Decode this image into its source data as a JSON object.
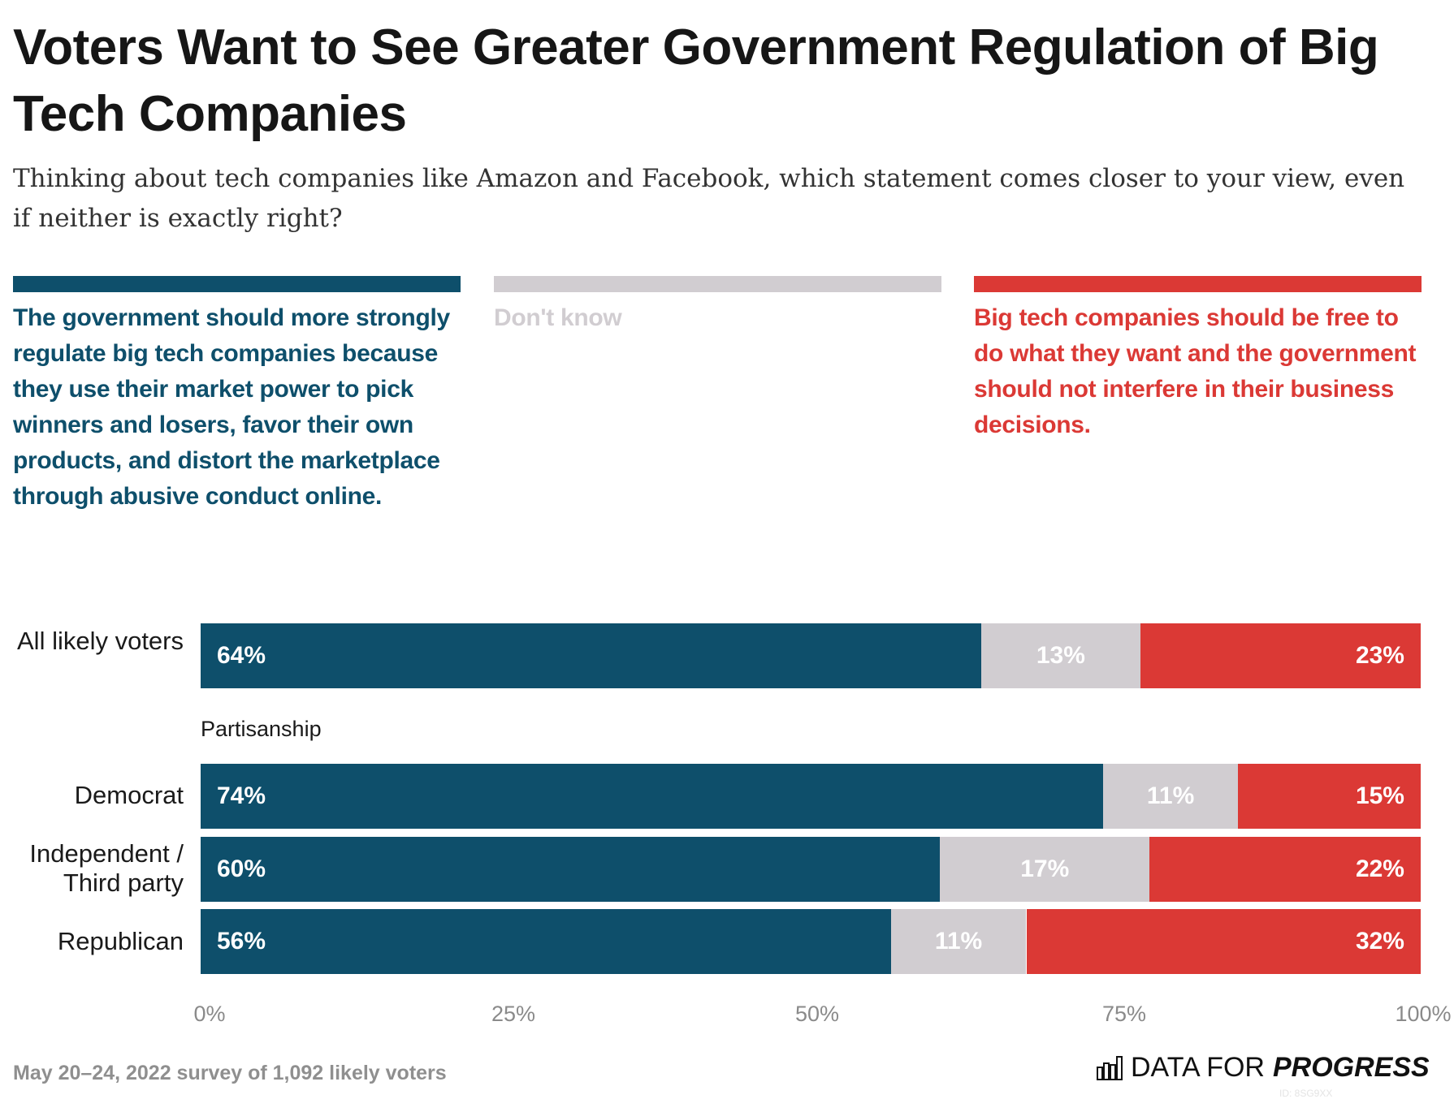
{
  "title": "Voters Want to See Greater Government Regulation of Big Tech Companies",
  "subtitle": "Thinking about tech companies like Amazon and Facebook, which statement comes closer to your view, even if neither is exactly right?",
  "colors": {
    "regulate": "#0e4f6b",
    "dont_know": "#d1cdd1",
    "free": "#db3935"
  },
  "legend": [
    {
      "label": "The government should more strongly regulate big tech companies because they use their market power to pick winners and losers, favor their own products, and distort the marketplace through abusive conduct online.",
      "color": "#0e4f6b"
    },
    {
      "label": "Don't know",
      "color": "#d1cdd1"
    },
    {
      "label": "Big tech companies should be free to do what they want and the government should not interfere in their business decisions.",
      "color": "#db3935"
    }
  ],
  "chart_data": {
    "type": "bar",
    "orientation": "horizontal",
    "stacked": true,
    "categories": [
      "All likely voters",
      "Democrat",
      "Independent / Third party",
      "Republican"
    ],
    "group_label": "Partisanship",
    "series": [
      {
        "name": "The government should more strongly regulate big tech companies",
        "values": [
          64,
          74,
          60,
          56
        ]
      },
      {
        "name": "Don't know",
        "values": [
          13,
          11,
          17,
          11
        ]
      },
      {
        "name": "Big tech companies should be free to do what they want",
        "values": [
          23,
          15,
          22,
          32
        ]
      }
    ],
    "data_labels": [
      [
        "64%",
        "13%",
        "23%"
      ],
      [
        "74%",
        "11%",
        "15%"
      ],
      [
        "60%",
        "17%",
        "22%"
      ],
      [
        "56%",
        "11%",
        "32%"
      ]
    ],
    "xlim": [
      0,
      100
    ],
    "xticks": [
      "0%",
      "25%",
      "50%",
      "75%",
      "100%"
    ],
    "grid": false,
    "legend_placement": "top"
  },
  "footer": "May 20–24, 2022 survey of 1,092 likely voters",
  "logo": {
    "light": "DATA FOR",
    "bold": "PROGRESS",
    "icon": "bar-chart-icon"
  },
  "id_text": "ID: 8SG9XX"
}
